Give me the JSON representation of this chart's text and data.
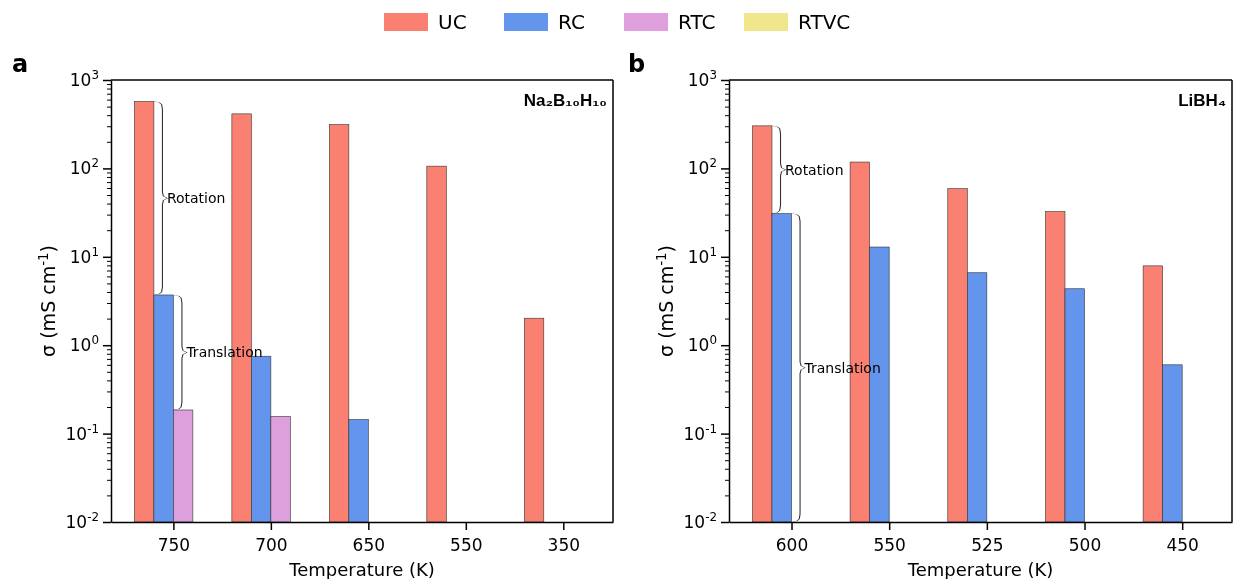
{
  "chart_data": [
    {
      "type": "bar",
      "title": "a",
      "subtitle": "Na₂B₁₀H₁₀",
      "xlabel": "Temperature (K)",
      "ylabel": "σ (mS cm$^{-1}$)",
      "log": true,
      "legend": "top",
      "grid": false,
      "categories": [
        "750",
        "700",
        "650",
        "550",
        "350"
      ],
      "series": [
        {
          "name": "UC",
          "color": "#fa8072",
          "values": [
            570,
            414,
            313,
            106,
            2.02
          ]
        },
        {
          "name": "RC",
          "color": "#6495ed",
          "values": [
            3.7,
            0.75,
            0.144,
            null,
            null
          ]
        },
        {
          "name": "RTC",
          "color": "#dda0dd",
          "values": [
            0.185,
            0.156,
            null,
            null,
            null
          ]
        },
        {
          "name": "RTVC",
          "color": "#f0e68c",
          "values": [
            null,
            null,
            null,
            null,
            null
          ]
        }
      ],
      "ylim": [
        0.01,
        1000
      ],
      "yticks": [
        {
          "value": 0.01,
          "label": "10$^{-2}$"
        },
        {
          "value": 0.1,
          "label": "10$^{-1}$"
        },
        {
          "value": 1,
          "label": "10$^{0}$"
        },
        {
          "value": 10,
          "label": "10$^{1}$"
        },
        {
          "value": 100,
          "label": "10$^{2}$"
        },
        {
          "value": 1000,
          "label": "10$^{3}$"
        },
        {
          "value": 0.02,
          "label": null
        },
        {
          "value": 0.03,
          "label": null
        },
        {
          "value": 0.04,
          "label": null
        },
        {
          "value": 0.05,
          "label": null
        },
        {
          "value": 0.06,
          "label": null
        },
        {
          "value": 0.07,
          "label": null
        },
        {
          "value": 0.08,
          "label": null
        },
        {
          "value": 0.09,
          "label": null
        },
        {
          "value": 0.2,
          "label": null
        },
        {
          "value": 0.3,
          "label": null
        },
        {
          "value": 0.4,
          "label": null
        },
        {
          "value": 0.5,
          "label": null
        },
        {
          "value": 0.6,
          "label": null
        },
        {
          "value": 0.7,
          "label": null
        },
        {
          "value": 0.8,
          "label": null
        },
        {
          "value": 0.9,
          "label": null
        },
        {
          "value": 2,
          "label": null
        },
        {
          "value": 3,
          "label": null
        },
        {
          "value": 4,
          "label": null
        },
        {
          "value": 5,
          "label": null
        },
        {
          "value": 6,
          "label": null
        },
        {
          "value": 7,
          "label": null
        },
        {
          "value": 8,
          "label": null
        },
        {
          "value": 9,
          "label": null
        },
        {
          "value": 20,
          "label": null
        },
        {
          "value": 30,
          "label": null
        },
        {
          "value": 40,
          "label": null
        },
        {
          "value": 50,
          "label": null
        },
        {
          "value": 60,
          "label": null
        },
        {
          "value": 70,
          "label": null
        },
        {
          "value": 80,
          "label": null
        },
        {
          "value": 90,
          "label": null
        },
        {
          "value": 200,
          "label": null
        },
        {
          "value": 300,
          "label": null
        },
        {
          "value": 400,
          "label": null
        },
        {
          "value": 500,
          "label": null
        },
        {
          "value": 600,
          "label": null
        },
        {
          "value": 700,
          "label": null
        },
        {
          "value": 800,
          "label": null
        },
        {
          "value": 900,
          "label": null
        }
      ],
      "annotations": [
        "Rotation",
        "Translation"
      ]
    },
    {
      "type": "bar",
      "title": "b",
      "subtitle": "LiBH₄",
      "xlabel": "Temperature (K)",
      "ylabel": "σ (mS cm$^{-1}$)",
      "log": true,
      "grid": false,
      "categories": [
        "600",
        "550",
        "525",
        "500",
        "450"
      ],
      "series": [
        {
          "color": "#fa8072",
          "values": [
            303,
            118,
            59,
            32.4,
            7.9
          ]
        },
        {
          "color": "#6495ed",
          "values": [
            30.8,
            12.9,
            6.6,
            4.35,
            0.6
          ]
        }
      ],
      "ylim": [
        0.01,
        1000
      ],
      "yticks": [
        {
          "value": 0.01,
          "label": "10$^{-2}$"
        },
        {
          "value": 0.1,
          "label": "10$^{-1}$"
        },
        {
          "value": 1,
          "label": "10$^{0}$"
        },
        {
          "value": 10,
          "label": "10$^{1}$"
        },
        {
          "value": 100,
          "label": "10$^{2}$"
        },
        {
          "value": 1000,
          "label": "10$^{3}$"
        },
        {
          "value": 0.02,
          "label": null
        },
        {
          "value": 0.03,
          "label": null
        },
        {
          "value": 0.04,
          "label": null
        },
        {
          "value": 0.05,
          "label": null
        },
        {
          "value": 0.06,
          "label": null
        },
        {
          "value": 0.07,
          "label": null
        },
        {
          "value": 0.08,
          "label": null
        },
        {
          "value": 0.09,
          "label": null
        },
        {
          "value": 0.2,
          "label": null
        },
        {
          "value": 0.3,
          "label": null
        },
        {
          "value": 0.4,
          "label": null
        },
        {
          "value": 0.5,
          "label": null
        },
        {
          "value": 0.6,
          "label": null
        },
        {
          "value": 0.7,
          "label": null
        },
        {
          "value": 0.8,
          "label": null
        },
        {
          "value": 0.9,
          "label": null
        },
        {
          "value": 2,
          "label": null
        },
        {
          "value": 3,
          "label": null
        },
        {
          "value": 4,
          "label": null
        },
        {
          "value": 5,
          "label": null
        },
        {
          "value": 6,
          "label": null
        },
        {
          "value": 7,
          "label": null
        },
        {
          "value": 8,
          "label": null
        },
        {
          "value": 9,
          "label": null
        },
        {
          "value": 20,
          "label": null
        },
        {
          "value": 30,
          "label": null
        },
        {
          "value": 40,
          "label": null
        },
        {
          "value": 50,
          "label": null
        },
        {
          "value": 60,
          "label": null
        },
        {
          "value": 70,
          "label": null
        },
        {
          "value": 80,
          "label": null
        },
        {
          "value": 90,
          "label": null
        },
        {
          "value": 200,
          "label": null
        },
        {
          "value": 300,
          "label": null
        },
        {
          "value": 400,
          "label": null
        },
        {
          "value": 500,
          "label": null
        },
        {
          "value": 600,
          "label": null
        },
        {
          "value": 700,
          "label": null
        },
        {
          "value": 800,
          "label": null
        },
        {
          "value": 900,
          "label": null
        }
      ],
      "annotations": [
        "Rotation",
        "Translation"
      ]
    }
  ]
}
